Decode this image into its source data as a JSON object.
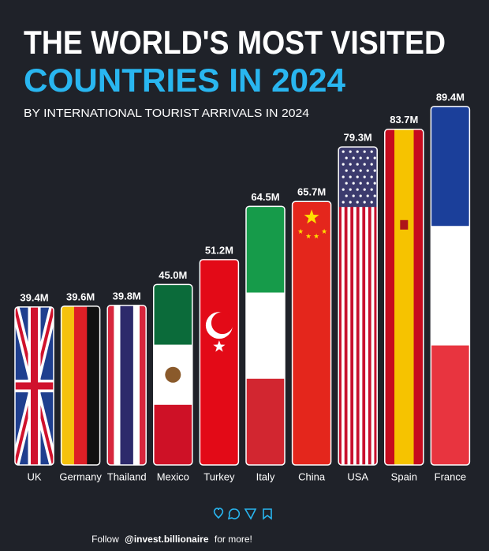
{
  "chart_data": {
    "type": "bar",
    "title": "THE WORLD'S MOST VISITED",
    "title_highlight": "COUNTRIES IN 2024",
    "subtitle": "BY INTERNATIONAL TOURIST ARRIVALS IN 2024",
    "categories": [
      "UK",
      "Germany",
      "Thailand",
      "Mexico",
      "Turkey",
      "Italy",
      "China",
      "USA",
      "Spain",
      "France"
    ],
    "values": [
      39.4,
      39.6,
      39.8,
      45.0,
      51.2,
      64.5,
      65.7,
      79.3,
      83.7,
      89.4
    ],
    "value_labels": [
      "39.4M",
      "39.6M",
      "39.8M",
      "45.0M",
      "51.2M",
      "64.5M",
      "65.7M",
      "79.3M",
      "83.7M",
      "89.4M"
    ],
    "footer": {
      "prefix": "Follow",
      "handle": "@invest.billionaire",
      "suffix": "for more!"
    }
  }
}
